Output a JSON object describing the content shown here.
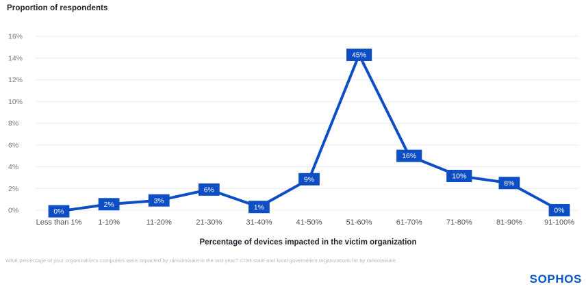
{
  "header": {
    "title": "Proportion of respondents"
  },
  "chart_data": {
    "type": "line",
    "title": "Proportion of respondents",
    "xlabel": "Percentage of devices impacted in the victim organization",
    "ylabel": "Proportion of respondents",
    "categories": [
      "Less than 1%",
      "1-10%",
      "11-20%",
      "21-30%",
      "31-40%",
      "41-50%",
      "51-60%",
      "61-70%",
      "71-80%",
      "81-90%",
      "91-100%"
    ],
    "values": [
      0,
      2,
      3,
      6,
      1,
      9,
      45,
      16,
      10,
      8,
      0
    ],
    "value_labels": [
      "0%",
      "2%",
      "3%",
      "6%",
      "1%",
      "9%",
      "45%",
      "16%",
      "10%",
      "8%",
      "0%"
    ],
    "plotted_axis_values": [
      -0.1,
      0.55,
      0.9,
      1.9,
      0.3,
      2.85,
      14.3,
      5.0,
      3.15,
      2.5,
      0.0
    ],
    "ylim": [
      0,
      16
    ],
    "ytick_step": 2,
    "ytick_labels": [
      "0%",
      "2%",
      "4%",
      "6%",
      "8%",
      "10%",
      "12%",
      "14%",
      "16%"
    ],
    "grid": true,
    "legend_position": "none",
    "line_color": "#0d4ec4",
    "label_box_color": "#0d4ec4",
    "label_text_color": "#ffffff",
    "grid_color": "#eceaec",
    "ytick_color": "#74747e",
    "xtick_color": "#4f4f59"
  },
  "footnote": "What percentage of your organization's computers were impacted by ransomware in the last year? n=93 state and local government organizations hit by ransomware",
  "logo": "SOPHOS",
  "colors": {
    "brand_blue": "#0055cb",
    "series_blue": "#0d4ec4",
    "background": "#ffffff"
  }
}
